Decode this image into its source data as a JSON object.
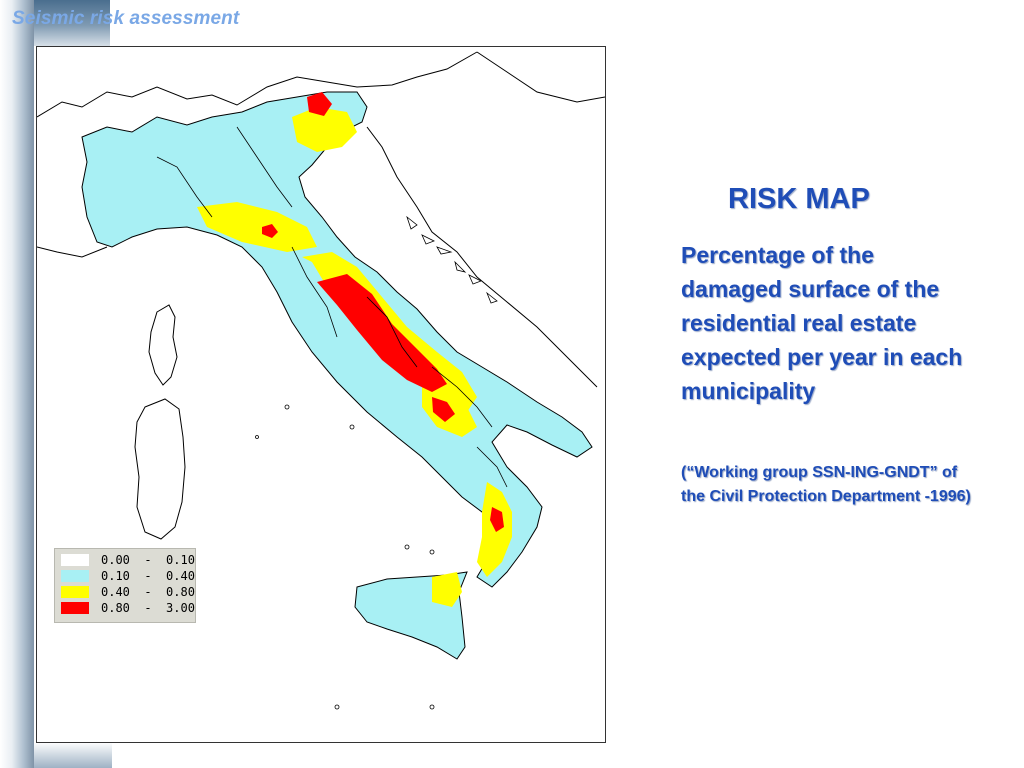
{
  "slide": {
    "title": "Seismic risk assessment"
  },
  "map": {
    "legend": [
      {
        "range": "0.00  -  0.10",
        "color": "#ffffff"
      },
      {
        "range": "0.10  -  0.40",
        "color": "#a8f0f4"
      },
      {
        "range": "0.40  -  0.80",
        "color": "#ffff00"
      },
      {
        "range": "0.80  -  3.00",
        "color": "#ff0000"
      }
    ]
  },
  "panel": {
    "heading": "RISK MAP",
    "description": "Percentage of the damaged surface of the residential real estate expected per year in each municipality",
    "source": "(“Working group SSN-ING-GNDT” of the Civil Protection Department -1996)"
  }
}
